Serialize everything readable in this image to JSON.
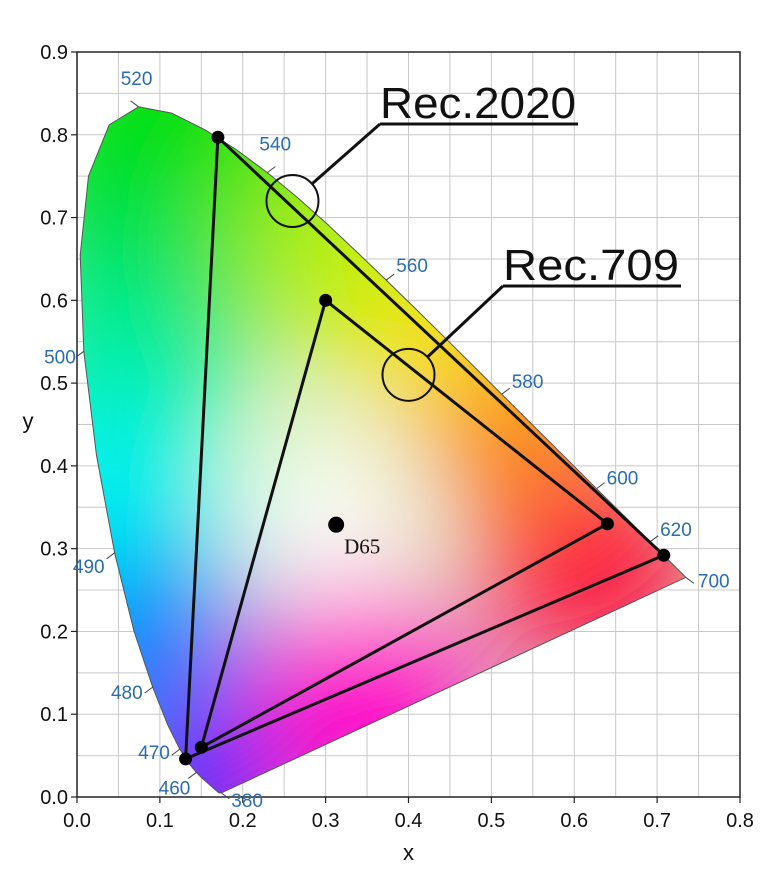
{
  "chart_data": {
    "type": "scatter",
    "title": "",
    "xlabel": "x",
    "ylabel": "y",
    "xlim": [
      0.0,
      0.8
    ],
    "ylim": [
      0.0,
      0.9
    ],
    "grid": true,
    "x_ticks": [
      "0.0",
      "0.1",
      "0.2",
      "0.3",
      "0.4",
      "0.5",
      "0.6",
      "0.7",
      "0.8"
    ],
    "y_ticks": [
      "0.0",
      "0.1",
      "0.2",
      "0.3",
      "0.4",
      "0.5",
      "0.6",
      "0.7",
      "0.8",
      "0.9"
    ],
    "spectral_locus": [
      {
        "nm": "380",
        "x": 0.1741,
        "y": 0.005,
        "label": "380"
      },
      {
        "nm": "460",
        "x": 0.144,
        "y": 0.0297,
        "label": "460"
      },
      {
        "nm": "470",
        "x": 0.1241,
        "y": 0.0578,
        "label": "470"
      },
      {
        "nm": "480",
        "x": 0.0913,
        "y": 0.1327,
        "label": "480"
      },
      {
        "nm": "490",
        "x": 0.0454,
        "y": 0.295,
        "label": "490"
      },
      {
        "nm": "500",
        "x": 0.0082,
        "y": 0.5384,
        "label": "500"
      },
      {
        "nm": "520",
        "x": 0.0743,
        "y": 0.8338,
        "label": "520"
      },
      {
        "nm": "540",
        "x": 0.2296,
        "y": 0.7543,
        "label": "540"
      },
      {
        "nm": "560",
        "x": 0.3731,
        "y": 0.6245,
        "label": "560"
      },
      {
        "nm": "580",
        "x": 0.5125,
        "y": 0.4866,
        "label": "580"
      },
      {
        "nm": "600",
        "x": 0.627,
        "y": 0.3725,
        "label": "600"
      },
      {
        "nm": "620",
        "x": 0.6915,
        "y": 0.3083,
        "label": "620"
      },
      {
        "nm": "700",
        "x": 0.7347,
        "y": 0.2653,
        "label": "700"
      }
    ],
    "gamuts": [
      {
        "name": "Rec.2020",
        "points": [
          [
            0.708,
            0.292
          ],
          [
            0.17,
            0.797
          ],
          [
            0.131,
            0.046
          ]
        ]
      },
      {
        "name": "Rec.709",
        "points": [
          [
            0.64,
            0.33
          ],
          [
            0.3,
            0.6
          ],
          [
            0.15,
            0.06
          ]
        ]
      }
    ],
    "callouts": [
      {
        "label": "Rec.2020",
        "circle": [
          0.26,
          0.72
        ]
      },
      {
        "label": "Rec.709",
        "circle": [
          0.4,
          0.51
        ]
      }
    ],
    "white_point": {
      "label": "D65",
      "x": 0.3127,
      "y": 0.329
    }
  }
}
